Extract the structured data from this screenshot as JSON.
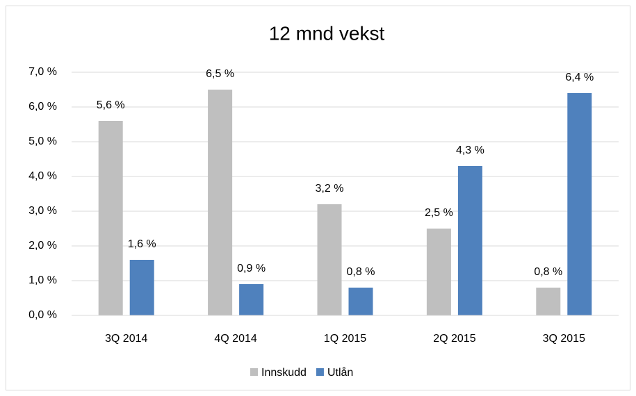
{
  "chart_data": {
    "type": "bar",
    "title": "12 mnd vekst",
    "categories": [
      "3Q 2014",
      "4Q 2014",
      "1Q 2015",
      "2Q 2015",
      "3Q 2015"
    ],
    "series": [
      {
        "name": "Innskudd",
        "color": "#bfbfbf",
        "values": [
          5.6,
          6.5,
          3.2,
          2.5,
          0.8
        ],
        "value_labels": [
          "5,6 %",
          "6,5 %",
          "3,2 %",
          "2,5 %",
          "0,8 %"
        ]
      },
      {
        "name": "Utlån",
        "color": "#4f81bd",
        "values": [
          1.6,
          0.9,
          0.8,
          4.3,
          6.4
        ],
        "value_labels": [
          "1,6 %",
          "0,9 %",
          "0,8 %",
          "4,3 %",
          "6,4 %"
        ]
      }
    ],
    "ylim": [
      0,
      7
    ],
    "yticks": [
      {
        "value": 0,
        "label": "0,0 %"
      },
      {
        "value": 1,
        "label": "1,0 %"
      },
      {
        "value": 2,
        "label": "2,0 %"
      },
      {
        "value": 3,
        "label": "3,0 %"
      },
      {
        "value": 4,
        "label": "4,0 %"
      },
      {
        "value": 5,
        "label": "5,0 %"
      },
      {
        "value": 6,
        "label": "6,0 %"
      },
      {
        "value": 7,
        "label": "7,0 %"
      }
    ],
    "grid": true,
    "legend": "bottom"
  }
}
